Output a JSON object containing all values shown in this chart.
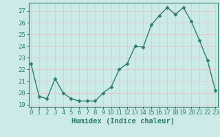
{
  "xlabel": "Humidex (Indice chaleur)",
  "x": [
    0,
    1,
    2,
    3,
    4,
    5,
    6,
    7,
    8,
    9,
    10,
    11,
    12,
    13,
    14,
    15,
    16,
    17,
    18,
    19,
    20,
    21,
    22,
    23
  ],
  "y": [
    22.5,
    19.7,
    19.5,
    21.2,
    20.0,
    19.5,
    19.3,
    19.3,
    19.3,
    20.0,
    20.5,
    22.0,
    22.5,
    24.0,
    23.9,
    25.8,
    26.6,
    27.3,
    26.7,
    27.3,
    26.1,
    24.5,
    22.8,
    20.2
  ],
  "line_color": "#2e7d6e",
  "marker": "D",
  "marker_size": 2.5,
  "line_width": 1.0,
  "bg_color": "#cceae7",
  "grid_color": "#e8c8c8",
  "yticks": [
    19,
    20,
    21,
    22,
    23,
    24,
    25,
    26,
    27
  ],
  "xticks": [
    0,
    1,
    2,
    3,
    4,
    5,
    6,
    7,
    8,
    9,
    10,
    11,
    12,
    13,
    14,
    15,
    16,
    17,
    18,
    19,
    20,
    21,
    22,
    23
  ],
  "xlim": [
    -0.3,
    23.3
  ],
  "ylim": [
    18.8,
    27.7
  ],
  "xlabel_fontsize": 7.5,
  "tick_fontsize": 6.5,
  "spine_color": "#2e7d6e"
}
